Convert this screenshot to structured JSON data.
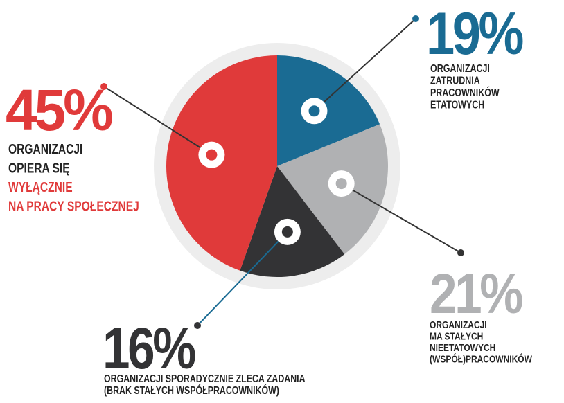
{
  "chart_data": {
    "type": "pie",
    "categories": [
      [
        "ORGANIZACJI",
        "ZATRUDNIA",
        "PRACOWNIKÓW",
        "ETATOWYCH"
      ],
      [
        "ORGANIZACJI",
        "MA STAŁYCH",
        "NIEETATOWYCH",
        "(WSPÓŁ)PRACOWNIKÓW"
      ],
      [
        "ORGANIZACJI SPORADYCZNIE ZLECA ZADANIA",
        "(BRAK STAŁYCH WSPÓŁPRACOWNIKÓW)"
      ],
      [
        "ORGANIZACJI",
        "OPIERA SIĘ",
        "WYŁĄCZNIE",
        "NA PRACY SPOŁECZNEJ"
      ]
    ],
    "values": [
      19,
      21,
      16,
      45
    ],
    "value_labels": [
      "19%",
      "21%",
      "16%",
      "45%"
    ],
    "colors": [
      "#1a6b93",
      "#b0b1b3",
      "#333335",
      "#e03a3a"
    ],
    "highlight": {
      "index": 3,
      "lines": [
        2,
        3
      ],
      "color": "#e03a3a"
    }
  }
}
